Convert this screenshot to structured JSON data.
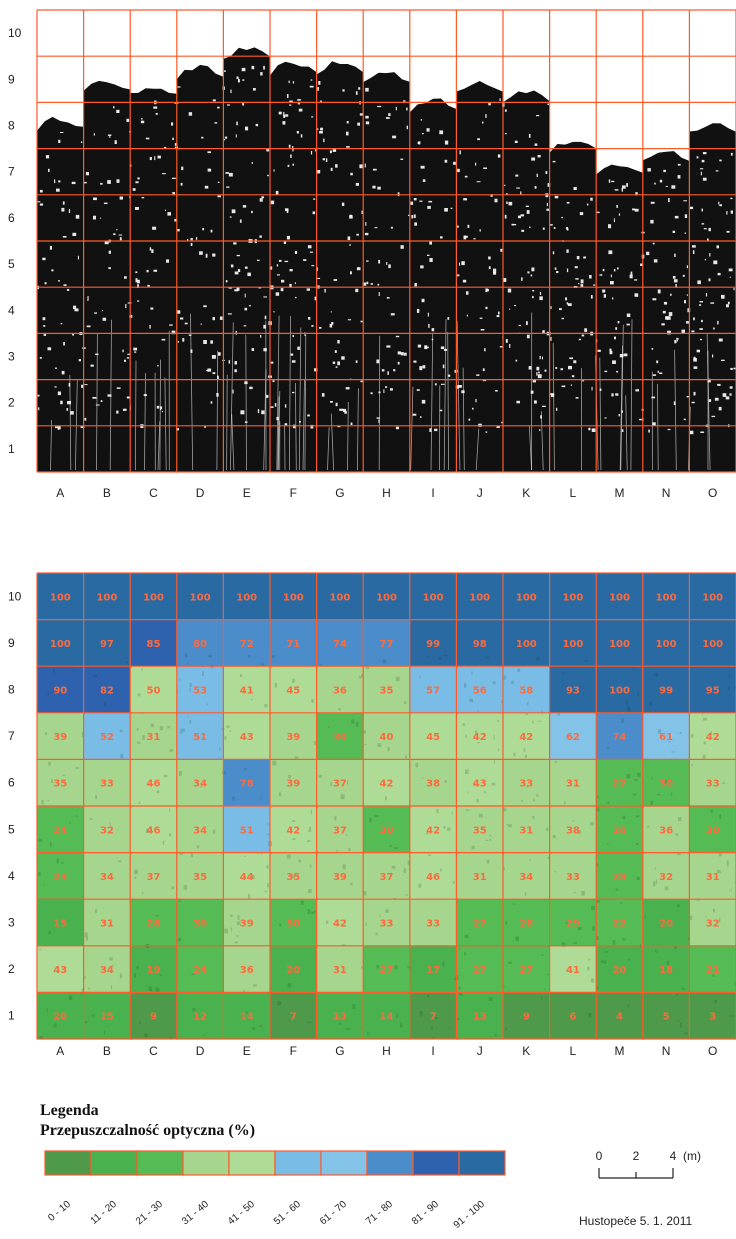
{
  "chart_data": [
    {
      "type": "grid",
      "columns": [
        "A",
        "B",
        "C",
        "D",
        "E",
        "F",
        "G",
        "H",
        "I",
        "J",
        "K",
        "L",
        "M",
        "N",
        "O"
      ],
      "rows": [
        "10",
        "9",
        "8",
        "7",
        "6",
        "5",
        "4",
        "3",
        "2",
        "1"
      ],
      "tree_top_row_per_column": [
        7.7,
        8.5,
        8.4,
        8.8,
        9.2,
        8.9,
        8.9,
        8.7,
        8.1,
        8.5,
        8.3,
        7.2,
        6.7,
        7.0,
        7.6
      ]
    },
    {
      "type": "heatmap",
      "columns": [
        "A",
        "B",
        "C",
        "D",
        "E",
        "F",
        "G",
        "H",
        "I",
        "J",
        "K",
        "L",
        "M",
        "N",
        "O"
      ],
      "rows": [
        "10",
        "9",
        "8",
        "7",
        "6",
        "5",
        "4",
        "3",
        "2",
        "1"
      ],
      "values": [
        [
          100,
          100,
          100,
          100,
          100,
          100,
          100,
          100,
          100,
          100,
          100,
          100,
          100,
          100,
          100
        ],
        [
          100,
          97,
          85,
          80,
          72,
          71,
          74,
          77,
          99,
          98,
          100,
          100,
          100,
          100,
          100
        ],
        [
          90,
          82,
          50,
          53,
          41,
          45,
          36,
          35,
          57,
          56,
          58,
          93,
          100,
          99,
          95
        ],
        [
          39,
          52,
          31,
          51,
          43,
          39,
          30,
          40,
          45,
          42,
          42,
          62,
          74,
          61,
          42
        ],
        [
          35,
          33,
          46,
          34,
          78,
          39,
          37,
          42,
          38,
          43,
          33,
          31,
          27,
          30,
          33
        ],
        [
          24,
          32,
          46,
          34,
          51,
          42,
          37,
          30,
          42,
          35,
          31,
          38,
          26,
          36,
          30
        ],
        [
          23,
          34,
          37,
          35,
          44,
          35,
          39,
          37,
          46,
          31,
          34,
          33,
          28,
          32,
          31
        ],
        [
          15,
          31,
          28,
          30,
          39,
          30,
          42,
          33,
          33,
          27,
          28,
          29,
          22,
          20,
          32
        ],
        [
          43,
          34,
          19,
          24,
          36,
          20,
          31,
          27,
          17,
          27,
          27,
          41,
          20,
          18,
          21
        ],
        [
          20,
          15,
          9,
          12,
          14,
          7,
          13,
          14,
          7,
          13,
          9,
          6,
          4,
          5,
          3
        ]
      ]
    }
  ],
  "legend": {
    "title_line1": "Legenda",
    "title_line2": "Przepuszczalność optyczna (%)",
    "bins": [
      {
        "label": "0 - 10",
        "color": "#4f9a4a"
      },
      {
        "label": "11 - 20",
        "color": "#49b24f"
      },
      {
        "label": "21 - 30",
        "color": "#55bb55"
      },
      {
        "label": "31 - 40",
        "color": "#a6d68e"
      },
      {
        "label": "41 - 50",
        "color": "#aedb96"
      },
      {
        "label": "51 - 60",
        "color": "#79bde6"
      },
      {
        "label": "61 - 70",
        "color": "#84c3e8"
      },
      {
        "label": "71 - 80",
        "color": "#4b8ccb"
      },
      {
        "label": "81 - 90",
        "color": "#2f62ae"
      },
      {
        "label": "91 - 100",
        "color": "#2a6aa3"
      }
    ]
  },
  "scale_bar": {
    "ticks": [
      "0",
      "2",
      "4"
    ],
    "unit": "(m)"
  },
  "footer": {
    "place_date": "Hustopeče 5. 1. 2011"
  },
  "colors": {
    "grid_line": "#ff5a2a",
    "tree": "#111111"
  }
}
